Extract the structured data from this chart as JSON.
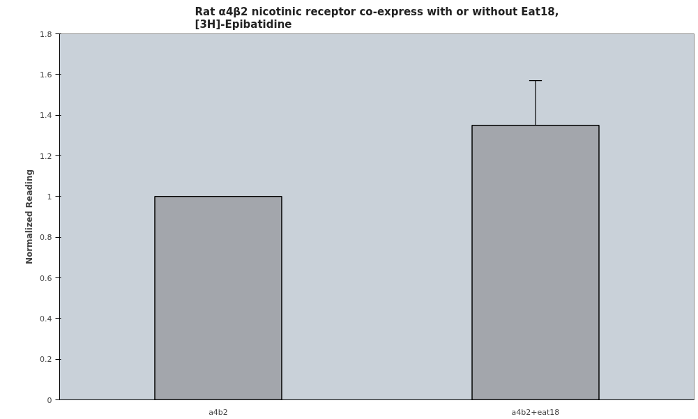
{
  "chart_data": {
    "type": "bar",
    "title": "Rat α4β2 nicotinic receptor co-express with or without Eat18,\n[3H]-Epibatidine",
    "ylabel": "Normalized Reading",
    "categories": [
      "a4b2",
      "a4b2+eat18"
    ],
    "values": [
      1,
      1.35
    ],
    "errors": [
      null,
      [
        1.35,
        1.57
      ]
    ],
    "color": "#a3a6ac",
    "ylim": [
      0,
      1.8
    ],
    "yticks": [
      0,
      0.2,
      0.4,
      0.6,
      0.8,
      1,
      1.2,
      1.4,
      1.6,
      1.8
    ],
    "grid": false
  }
}
